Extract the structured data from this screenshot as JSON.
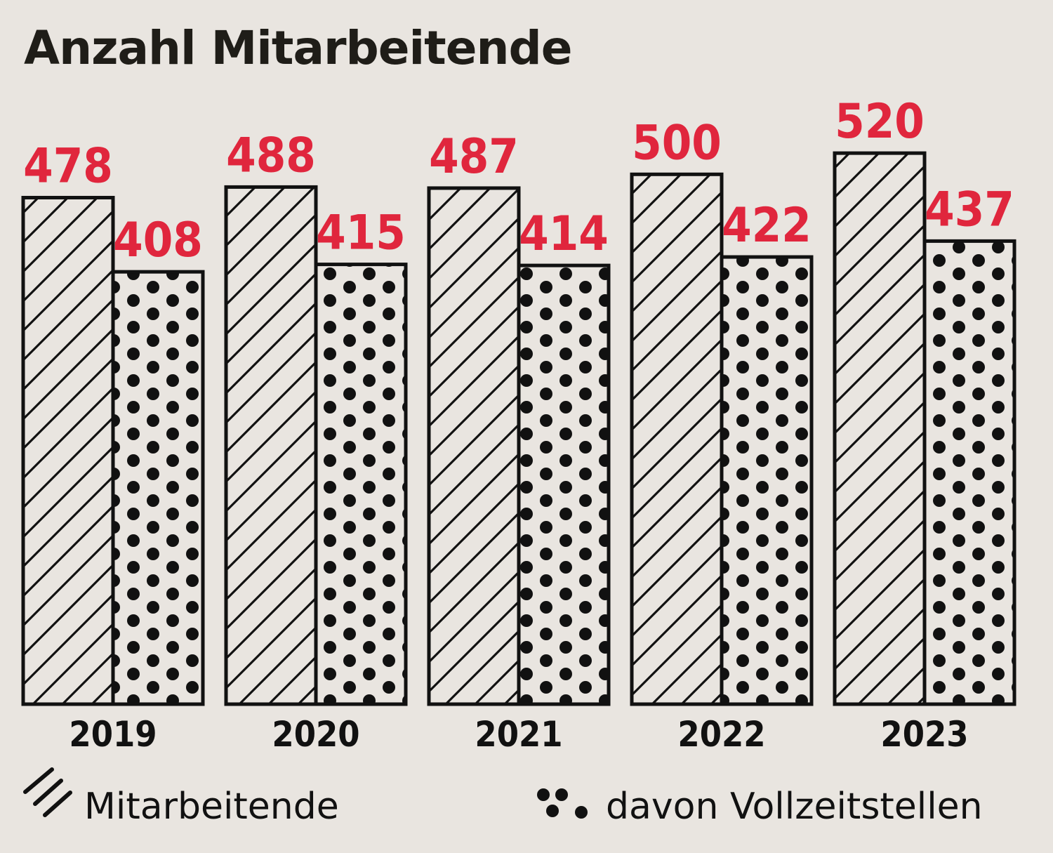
{
  "title": "Anzahl Mitarbeitende",
  "colors": {
    "background": "#e9e5e0",
    "value_label": "#e0263d",
    "ink": "#111111"
  },
  "legend": [
    {
      "label": "Mitarbeitende",
      "pattern": "hatch"
    },
    {
      "label": "davon Vollzeitstellen",
      "pattern": "dots"
    }
  ],
  "chart_data": {
    "type": "bar",
    "title": "Anzahl Mitarbeitende",
    "categories": [
      "2019",
      "2020",
      "2021",
      "2022",
      "2023"
    ],
    "series": [
      {
        "name": "Mitarbeitende",
        "pattern": "hatch",
        "values": [
          478,
          488,
          487,
          500,
          520
        ]
      },
      {
        "name": "davon Vollzeitstellen",
        "pattern": "dots",
        "values": [
          408,
          415,
          414,
          422,
          437
        ]
      }
    ],
    "xlabel": "",
    "ylabel": "",
    "grid": false,
    "legend_position": "bottom"
  }
}
